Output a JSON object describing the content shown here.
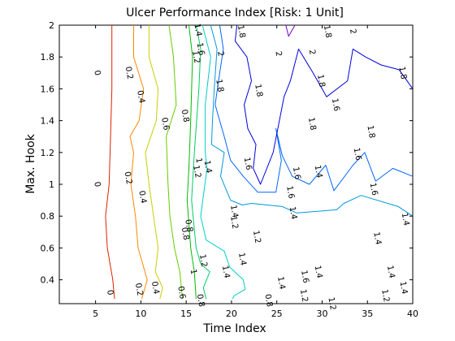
{
  "chart_data": {
    "type": "contour",
    "title": "Ulcer Performance Index [Risk: 1 Unit]",
    "xlabel": "Time Index",
    "ylabel": "Max. Hook",
    "xlim": [
      1,
      40
    ],
    "ylim": [
      0.25,
      2
    ],
    "x_ticks": [
      5,
      10,
      15,
      20,
      25,
      30,
      35,
      40
    ],
    "y_ticks": [
      0.4,
      0.6,
      0.8,
      1,
      1.2,
      1.4,
      1.6,
      1.8,
      2
    ],
    "grid": false,
    "legend": "none",
    "levels": [
      {
        "level": 0,
        "label": "0",
        "color": "#dd2200",
        "points": [
          [
            6.8,
            2
          ],
          [
            6.8,
            1.6
          ],
          [
            6.6,
            1.2
          ],
          [
            6.5,
            1.0
          ],
          [
            6.1,
            0.8
          ],
          [
            6.3,
            0.6
          ],
          [
            6.9,
            0.4
          ],
          [
            7.1,
            0.28
          ]
        ]
      },
      {
        "level": 0.2,
        "label": "0.2",
        "color": "#ff8800",
        "points": [
          [
            9.2,
            2
          ],
          [
            9.2,
            1.8
          ],
          [
            10.3,
            1.6
          ],
          [
            9.8,
            1.4
          ],
          [
            8.8,
            1.3
          ],
          [
            9.2,
            1.2
          ],
          [
            8.9,
            1.0
          ],
          [
            9.4,
            0.8
          ],
          [
            9.7,
            0.6
          ],
          [
            10.7,
            0.4
          ],
          [
            10.1,
            0.28
          ]
        ]
      },
      {
        "level": 0.4,
        "label": "0.4",
        "color": "#cccc00",
        "points": [
          [
            10.9,
            2
          ],
          [
            10.9,
            1.8
          ],
          [
            11.9,
            1.6
          ],
          [
            11.7,
            1.4
          ],
          [
            10.5,
            1.2
          ],
          [
            10.9,
            1.0
          ],
          [
            11.4,
            0.8
          ],
          [
            11.9,
            0.6
          ],
          [
            11.6,
            0.45
          ],
          [
            12.4,
            0.35
          ],
          [
            12.1,
            0.28
          ]
        ]
      },
      {
        "level": 0.6,
        "label": "0.6",
        "color": "#66cc00",
        "points": [
          [
            13.1,
            2
          ],
          [
            13.6,
            1.8
          ],
          [
            13.9,
            1.5
          ],
          [
            12.8,
            1.3
          ],
          [
            13.0,
            1.0
          ],
          [
            13.2,
            0.8
          ],
          [
            13.7,
            0.6
          ],
          [
            14.3,
            0.45
          ],
          [
            14.6,
            0.28
          ]
        ]
      },
      {
        "level": 0.8,
        "label": "0.8",
        "color": "#00bb00",
        "points": [
          [
            15.3,
            2
          ],
          [
            15.7,
            1.8
          ],
          [
            15.5,
            1.4
          ],
          [
            15.3,
            1.1
          ],
          [
            15.1,
            0.9
          ],
          [
            15.3,
            0.75
          ],
          [
            15.5,
            0.6
          ],
          [
            15.9,
            0.45
          ],
          [
            16.1,
            0.28
          ]
        ]
      },
      {
        "level": 1,
        "label": "1",
        "color": "#00cc66",
        "points": [
          [
            16.1,
            2
          ],
          [
            16.6,
            1.85
          ],
          [
            16.4,
            1.6
          ],
          [
            15.9,
            1.2
          ],
          [
            15.6,
            0.9
          ],
          [
            16.1,
            0.6
          ],
          [
            16.6,
            0.5
          ],
          [
            17.6,
            0.45
          ],
          [
            16.9,
            0.35
          ],
          [
            17.2,
            0.28
          ]
        ]
      },
      {
        "level": 1.2,
        "label": "1.2",
        "color": "#00cccc",
        "points": [
          [
            16.8,
            2
          ],
          [
            17.7,
            1.8
          ],
          [
            17.1,
            1.5
          ],
          [
            17.1,
            1.2
          ],
          [
            17.3,
            1.1
          ],
          [
            16.6,
            0.8
          ],
          [
            17.2,
            0.65
          ],
          [
            19.2,
            0.58
          ],
          [
            19.8,
            0.48
          ],
          [
            21.3,
            0.4
          ],
          [
            21.5,
            0.34
          ],
          [
            20.3,
            0.3
          ],
          [
            20.1,
            0.28
          ]
        ]
      },
      {
        "level": 1.4,
        "label": "1.4",
        "color": "#0099dd",
        "points": [
          [
            17.7,
            2
          ],
          [
            18.4,
            1.85
          ],
          [
            18.1,
            1.6
          ],
          [
            17.9,
            1.4
          ],
          [
            17.8,
            1.25
          ],
          [
            19.2,
            1.2
          ],
          [
            18.8,
            1.05
          ],
          [
            19.9,
            0.9
          ],
          [
            21.2,
            0.87
          ],
          [
            22.2,
            0.88
          ],
          [
            25.6,
            0.86
          ],
          [
            27.2,
            0.82
          ],
          [
            31.6,
            0.84
          ],
          [
            32.4,
            0.88
          ],
          [
            34.3,
            0.93
          ],
          [
            38.4,
            0.86
          ],
          [
            40,
            0.8
          ]
        ]
      },
      {
        "level": 1.6,
        "label": "1.6",
        "color": "#0066ff",
        "points": [
          [
            18.7,
            2
          ],
          [
            19.1,
            1.85
          ],
          [
            18.7,
            1.7
          ],
          [
            18.2,
            1.5
          ],
          [
            19.2,
            1.3
          ],
          [
            19.9,
            1.15
          ],
          [
            21.3,
            1.05
          ],
          [
            22.9,
            0.95
          ],
          [
            24.9,
            0.95
          ],
          [
            25.5,
            1.15
          ],
          [
            24.9,
            1.35
          ],
          [
            25.6,
            1.18
          ],
          [
            26.7,
            1.05
          ],
          [
            28.6,
            1.0
          ],
          [
            30.4,
            1.12
          ],
          [
            31.3,
            0.96
          ],
          [
            33.4,
            1.12
          ],
          [
            34.7,
            1.2
          ],
          [
            35.9,
            1.02
          ],
          [
            37.8,
            1.1
          ],
          [
            40,
            1.05
          ]
        ]
      },
      {
        "level": 1.8,
        "label": "1.8",
        "color": "#0000dd",
        "points": [
          [
            20.6,
            2
          ],
          [
            20.4,
            1.9
          ],
          [
            21.7,
            1.8
          ],
          [
            22.2,
            1.65
          ],
          [
            21.4,
            1.5
          ],
          [
            21.8,
            1.35
          ],
          [
            22.7,
            1.25
          ],
          [
            22.4,
            1.1
          ],
          [
            23.2,
            1.0
          ],
          [
            24.6,
            1.2
          ],
          [
            25.8,
            1.55
          ],
          [
            26.5,
            1.65
          ],
          [
            27.4,
            1.85
          ],
          [
            29.0,
            1.7
          ],
          [
            30.5,
            1.55
          ],
          [
            32.8,
            1.65
          ],
          [
            33.4,
            1.85
          ],
          [
            34.8,
            1.8
          ],
          [
            36.5,
            1.75
          ],
          [
            38.5,
            1.72
          ],
          [
            40,
            1.6
          ]
        ]
      },
      {
        "level": 2,
        "label": "2",
        "color": "#7700cc",
        "points": [
          [
            26.0,
            2
          ],
          [
            26.3,
            1.93
          ],
          [
            27.0,
            2
          ]
        ]
      }
    ],
    "contour_labels": [
      {
        "text": "0",
        "x": 5.2,
        "y": 1.7
      },
      {
        "text": "0",
        "x": 5.2,
        "y": 1.0
      },
      {
        "text": "0",
        "x": 6.6,
        "y": 0.32
      },
      {
        "text": "0.2",
        "x": 8.7,
        "y": 1.7
      },
      {
        "text": "0.4",
        "x": 10.0,
        "y": 1.55
      },
      {
        "text": "0.2",
        "x": 8.6,
        "y": 1.04
      },
      {
        "text": "0.4",
        "x": 10.2,
        "y": 0.92
      },
      {
        "text": "0.2",
        "x": 9.8,
        "y": 0.34
      },
      {
        "text": "0.4",
        "x": 11.6,
        "y": 0.35
      },
      {
        "text": "0.6",
        "x": 12.7,
        "y": 1.38
      },
      {
        "text": "0.8",
        "x": 14.9,
        "y": 1.43
      },
      {
        "text": "0.8",
        "x": 14.9,
        "y": 0.69
      },
      {
        "text": "0.6",
        "x": 14.5,
        "y": 0.32
      },
      {
        "text": "1.4",
        "x": 16.3,
        "y": 1.97
      },
      {
        "text": "1.2",
        "x": 16.1,
        "y": 1.8
      },
      {
        "text": "1.6",
        "x": 16.6,
        "y": 1.85
      },
      {
        "text": "2",
        "x": 18.8,
        "y": 1.82
      },
      {
        "text": "1.8",
        "x": 21.1,
        "y": 1.96
      },
      {
        "text": "2",
        "x": 25.2,
        "y": 1.82
      },
      {
        "text": "2",
        "x": 33.4,
        "y": 1.96
      },
      {
        "text": "1.8",
        "x": 30.6,
        "y": 1.96
      },
      {
        "text": "2",
        "x": 28.9,
        "y": 1.83
      },
      {
        "text": "1.8",
        "x": 29.9,
        "y": 1.65
      },
      {
        "text": "1.8",
        "x": 38.9,
        "y": 1.7
      },
      {
        "text": "1.8",
        "x": 18.7,
        "y": 1.62
      },
      {
        "text": "1.8",
        "x": 23.0,
        "y": 1.59
      },
      {
        "text": "1.6",
        "x": 31.5,
        "y": 1.5
      },
      {
        "text": "1.8",
        "x": 28.9,
        "y": 1.38
      },
      {
        "text": "1.8",
        "x": 35.4,
        "y": 1.33
      },
      {
        "text": "1.6",
        "x": 33.9,
        "y": 1.19
      },
      {
        "text": "1.6",
        "x": 21.8,
        "y": 1.13
      },
      {
        "text": "1.6",
        "x": 27.2,
        "y": 1.07
      },
      {
        "text": "1.6",
        "x": 26.5,
        "y": 0.95
      },
      {
        "text": "1.4",
        "x": 29.6,
        "y": 1.08
      },
      {
        "text": "1.6",
        "x": 35.7,
        "y": 0.97
      },
      {
        "text": "1",
        "x": 16.4,
        "y": 1.15
      },
      {
        "text": "1.2",
        "x": 16.2,
        "y": 1.08
      },
      {
        "text": "1.4",
        "x": 17.4,
        "y": 1.11
      },
      {
        "text": "1.2",
        "x": 20.3,
        "y": 0.76
      },
      {
        "text": "1.4",
        "x": 20.3,
        "y": 0.83
      },
      {
        "text": "1.2",
        "x": 22.8,
        "y": 0.67
      },
      {
        "text": "1.4",
        "x": 26.8,
        "y": 0.82
      },
      {
        "text": "1.4",
        "x": 39.2,
        "y": 0.78
      },
      {
        "text": "1.4",
        "x": 36.1,
        "y": 0.66
      },
      {
        "text": "0.8",
        "x": 15.3,
        "y": 0.74
      },
      {
        "text": "1",
        "x": 15.8,
        "y": 0.45
      },
      {
        "text": "1.2",
        "x": 16.9,
        "y": 0.52
      },
      {
        "text": "1.4",
        "x": 19.4,
        "y": 0.45
      },
      {
        "text": "1.4",
        "x": 21.2,
        "y": 0.53
      },
      {
        "text": "1.4",
        "x": 25.5,
        "y": 0.38
      },
      {
        "text": "1.6",
        "x": 28.1,
        "y": 0.42
      },
      {
        "text": "1.4",
        "x": 29.6,
        "y": 0.45
      },
      {
        "text": "1.2",
        "x": 28.0,
        "y": 0.3
      },
      {
        "text": "1.4",
        "x": 37.6,
        "y": 0.45
      },
      {
        "text": "1.2",
        "x": 37.0,
        "y": 0.3
      },
      {
        "text": "1.4",
        "x": 39.0,
        "y": 0.35
      },
      {
        "text": "0.8",
        "x": 16.6,
        "y": 0.27
      },
      {
        "text": "0.8",
        "x": 24.1,
        "y": 0.27
      },
      {
        "text": "1.2",
        "x": 31.1,
        "y": 0.25
      }
    ]
  }
}
